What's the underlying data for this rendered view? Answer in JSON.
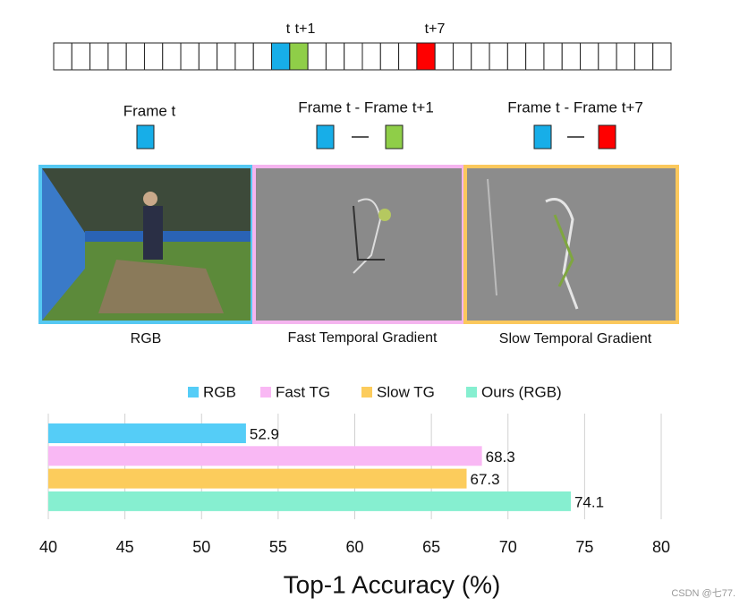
{
  "frames": {
    "labels": [
      "t",
      "t+1",
      "t+7"
    ]
  },
  "panels": [
    {
      "title": "Frame t",
      "caption": "RGB"
    },
    {
      "title": "Frame t - Frame t+1",
      "caption": "Fast Temporal Gradient"
    },
    {
      "title": "Frame t - Frame t+7",
      "caption": "Slow Temporal Gradient"
    }
  ],
  "chart_data": {
    "type": "bar",
    "orientation": "horizontal",
    "xlabel": "Top-1 Accuracy (%)",
    "categories": [
      null
    ],
    "series": [
      {
        "name": "RGB",
        "color": "#55cdf7",
        "values": [
          52.9
        ]
      },
      {
        "name": "Fast TG",
        "color": "#f9b8f4",
        "values": [
          68.3
        ]
      },
      {
        "name": "Slow TG",
        "color": "#fccc5c",
        "values": [
          67.3
        ]
      },
      {
        "name": "Ours (RGB)",
        "color": "#86efd0",
        "values": [
          74.1
        ]
      }
    ],
    "xlim": [
      40,
      80
    ],
    "xticks": [
      40,
      45,
      50,
      55,
      60,
      65,
      70,
      75,
      80
    ],
    "grid": true,
    "legend": "top"
  },
  "watermark": "CSDN @七77."
}
